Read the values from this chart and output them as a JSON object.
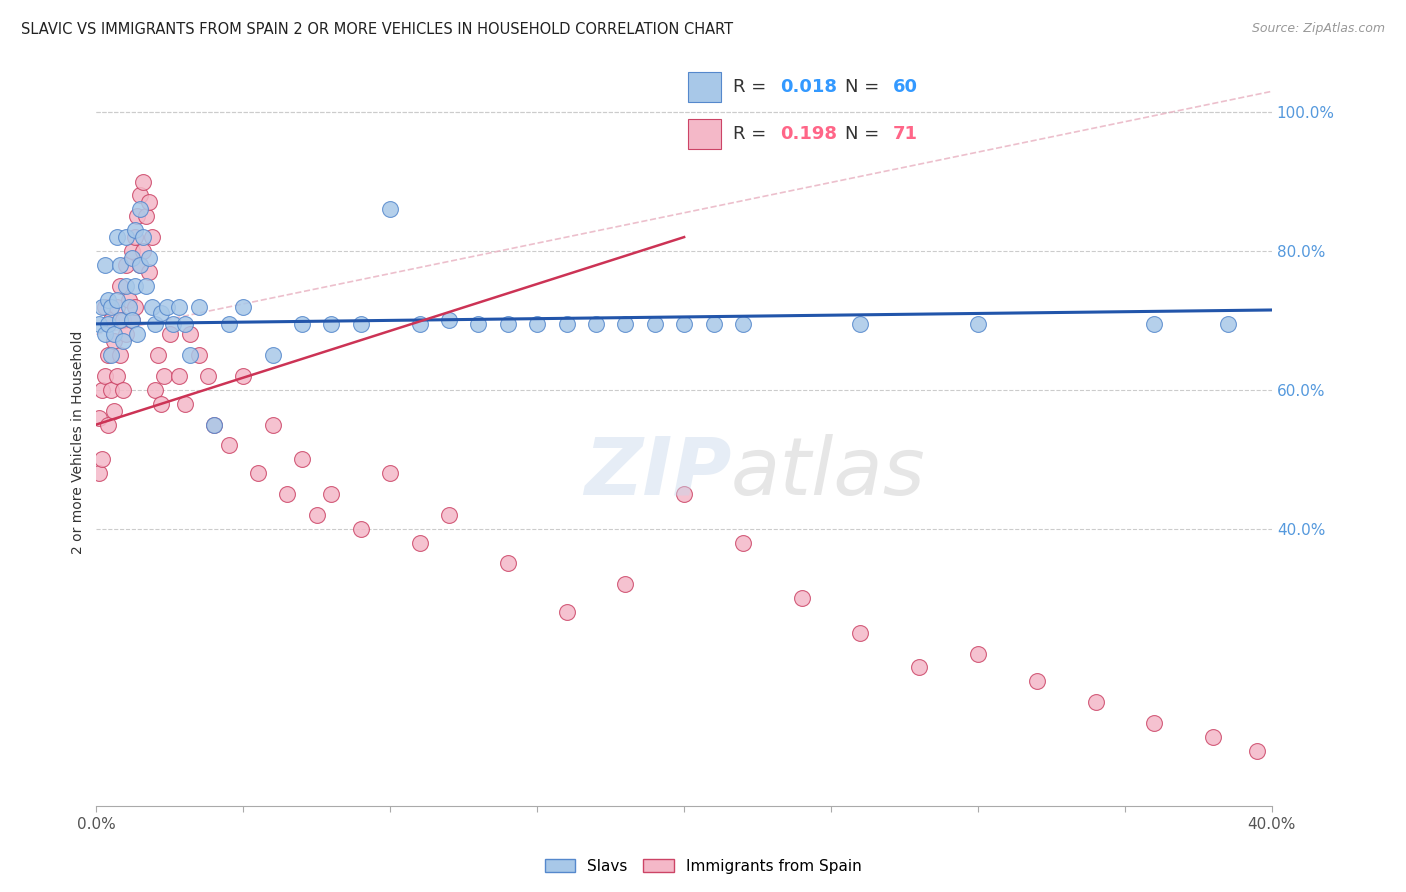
{
  "title": "SLAVIC VS IMMIGRANTS FROM SPAIN 2 OR MORE VEHICLES IN HOUSEHOLD CORRELATION CHART",
  "source": "Source: ZipAtlas.com",
  "ylabel": "2 or more Vehicles in Household",
  "legend_slavs_label": "Slavs",
  "legend_spain_label": "Immigrants from Spain",
  "R_slavs": "0.018",
  "N_slavs": "60",
  "R_spain": "0.198",
  "N_spain": "71",
  "xlim": [
    0.0,
    0.4
  ],
  "ylim": [
    0.0,
    1.05
  ],
  "color_slavs": "#A8C8E8",
  "color_slavs_edge": "#5588CC",
  "color_spain": "#F4B8C8",
  "color_spain_edge": "#CC4466",
  "color_slavs_line": "#2255AA",
  "color_spain_line": "#CC3355",
  "color_diag_line": "#E8B0C0",
  "slavs_x": [
    0.001,
    0.002,
    0.003,
    0.003,
    0.004,
    0.004,
    0.005,
    0.005,
    0.006,
    0.007,
    0.007,
    0.008,
    0.008,
    0.009,
    0.01,
    0.01,
    0.011,
    0.012,
    0.012,
    0.013,
    0.013,
    0.014,
    0.015,
    0.015,
    0.016,
    0.017,
    0.018,
    0.019,
    0.02,
    0.022,
    0.024,
    0.026,
    0.028,
    0.03,
    0.032,
    0.035,
    0.04,
    0.045,
    0.05,
    0.06,
    0.07,
    0.08,
    0.09,
    0.1,
    0.11,
    0.12,
    0.13,
    0.14,
    0.15,
    0.16,
    0.17,
    0.18,
    0.19,
    0.2,
    0.21,
    0.22,
    0.26,
    0.3,
    0.36,
    0.385
  ],
  "slavs_y": [
    0.695,
    0.72,
    0.68,
    0.78,
    0.73,
    0.695,
    0.72,
    0.65,
    0.68,
    0.82,
    0.73,
    0.78,
    0.7,
    0.67,
    0.82,
    0.75,
    0.72,
    0.79,
    0.7,
    0.83,
    0.75,
    0.68,
    0.86,
    0.78,
    0.82,
    0.75,
    0.79,
    0.72,
    0.695,
    0.71,
    0.72,
    0.695,
    0.72,
    0.695,
    0.65,
    0.72,
    0.55,
    0.695,
    0.72,
    0.65,
    0.695,
    0.695,
    0.695,
    0.86,
    0.695,
    0.7,
    0.695,
    0.695,
    0.695,
    0.695,
    0.695,
    0.695,
    0.695,
    0.695,
    0.695,
    0.695,
    0.695,
    0.695,
    0.695,
    0.695
  ],
  "spain_x": [
    0.001,
    0.001,
    0.002,
    0.002,
    0.003,
    0.003,
    0.004,
    0.004,
    0.005,
    0.005,
    0.006,
    0.006,
    0.007,
    0.007,
    0.008,
    0.008,
    0.009,
    0.009,
    0.01,
    0.01,
    0.011,
    0.012,
    0.012,
    0.013,
    0.013,
    0.014,
    0.015,
    0.015,
    0.016,
    0.016,
    0.017,
    0.018,
    0.018,
    0.019,
    0.02,
    0.021,
    0.022,
    0.023,
    0.025,
    0.028,
    0.03,
    0.032,
    0.035,
    0.038,
    0.04,
    0.045,
    0.05,
    0.055,
    0.06,
    0.065,
    0.07,
    0.075,
    0.08,
    0.09,
    0.1,
    0.11,
    0.12,
    0.14,
    0.16,
    0.18,
    0.2,
    0.22,
    0.24,
    0.26,
    0.28,
    0.3,
    0.32,
    0.34,
    0.36,
    0.38,
    0.395
  ],
  "spain_y": [
    0.56,
    0.48,
    0.6,
    0.5,
    0.72,
    0.62,
    0.65,
    0.55,
    0.7,
    0.6,
    0.67,
    0.57,
    0.72,
    0.62,
    0.75,
    0.65,
    0.7,
    0.6,
    0.78,
    0.68,
    0.73,
    0.8,
    0.7,
    0.82,
    0.72,
    0.85,
    0.88,
    0.78,
    0.9,
    0.8,
    0.85,
    0.87,
    0.77,
    0.82,
    0.6,
    0.65,
    0.58,
    0.62,
    0.68,
    0.62,
    0.58,
    0.68,
    0.65,
    0.62,
    0.55,
    0.52,
    0.62,
    0.48,
    0.55,
    0.45,
    0.5,
    0.42,
    0.45,
    0.4,
    0.48,
    0.38,
    0.42,
    0.35,
    0.28,
    0.32,
    0.45,
    0.38,
    0.3,
    0.25,
    0.2,
    0.22,
    0.18,
    0.15,
    0.12,
    0.1,
    0.08
  ],
  "slavs_line_x0": 0.0,
  "slavs_line_y0": 0.695,
  "slavs_line_x1": 0.4,
  "slavs_line_y1": 0.715,
  "spain_line_x0": 0.0,
  "spain_line_y0": 0.55,
  "spain_line_x1": 0.2,
  "spain_line_y1": 0.82,
  "diag_line_x0": 0.0,
  "diag_line_y0": 0.68,
  "diag_line_x1": 0.4,
  "diag_line_y1": 1.03
}
